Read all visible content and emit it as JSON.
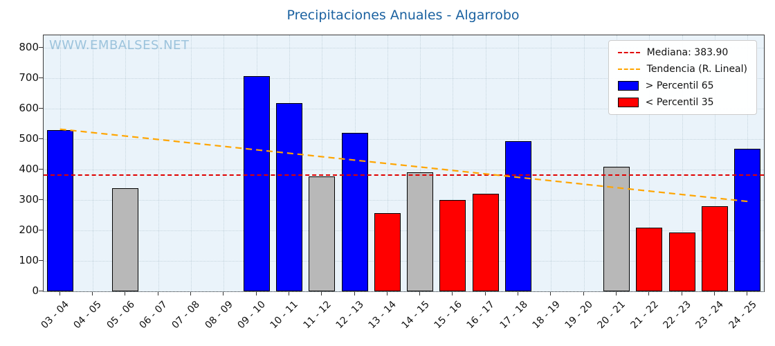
{
  "watermark": "WWW.EMBALSES.NET",
  "colors": {
    "title": "#1a61a0",
    "watermark": "#9cc3dc",
    "high": "#0000ff",
    "low": "#ff0000",
    "mid": "#b8b8b8",
    "bar_edge": "#000000",
    "median": "#e00000",
    "trend": "#ffa500",
    "plot_bg": "#eaf3fa",
    "grid": "#c5d5de"
  },
  "legend": [
    {
      "label": "Mediana: 383.90",
      "type": "line",
      "color": "#e00000"
    },
    {
      "label": "Tendencia (R. Lineal)",
      "type": "line",
      "color": "#ffa500"
    },
    {
      "label": "> Percentil 65",
      "type": "patch",
      "color": "#0000ff"
    },
    {
      "label": "< Percentil 35",
      "type": "patch",
      "color": "#ff0000"
    }
  ],
  "chart_data": {
    "type": "bar",
    "title": "Precipitaciones Anuales - Algarrobo",
    "xlabel": "",
    "ylabel": "",
    "categories": [
      "03 - 04",
      "04 - 05",
      "05 - 06",
      "06 - 07",
      "07 - 08",
      "08 - 09",
      "09 - 10",
      "10 - 11",
      "11 - 12",
      "12 - 13",
      "13 - 14",
      "14 - 15",
      "15 - 16",
      "16 - 17",
      "17 - 18",
      "18 - 19",
      "19 - 20",
      "20 - 21",
      "21 - 22",
      "22 - 23",
      "23 - 24",
      "24 - 25"
    ],
    "values": [
      528,
      null,
      338,
      null,
      null,
      null,
      706,
      618,
      378,
      520,
      256,
      390,
      300,
      320,
      492,
      null,
      null,
      408,
      210,
      192,
      280,
      468
    ],
    "bar_class": [
      "high",
      null,
      "mid",
      null,
      null,
      null,
      "high",
      "high",
      "mid",
      "high",
      "low",
      "mid",
      "low",
      "low",
      "high",
      null,
      null,
      "mid",
      "low",
      "low",
      "low",
      "high"
    ],
    "median": 383.9,
    "trend": {
      "start": 532,
      "end": 295
    },
    "ylim": [
      0,
      800
    ],
    "yticks": [
      0,
      100,
      200,
      300,
      400,
      500,
      600,
      700,
      800
    ],
    "grid": true,
    "legend_position": "upper right"
  }
}
